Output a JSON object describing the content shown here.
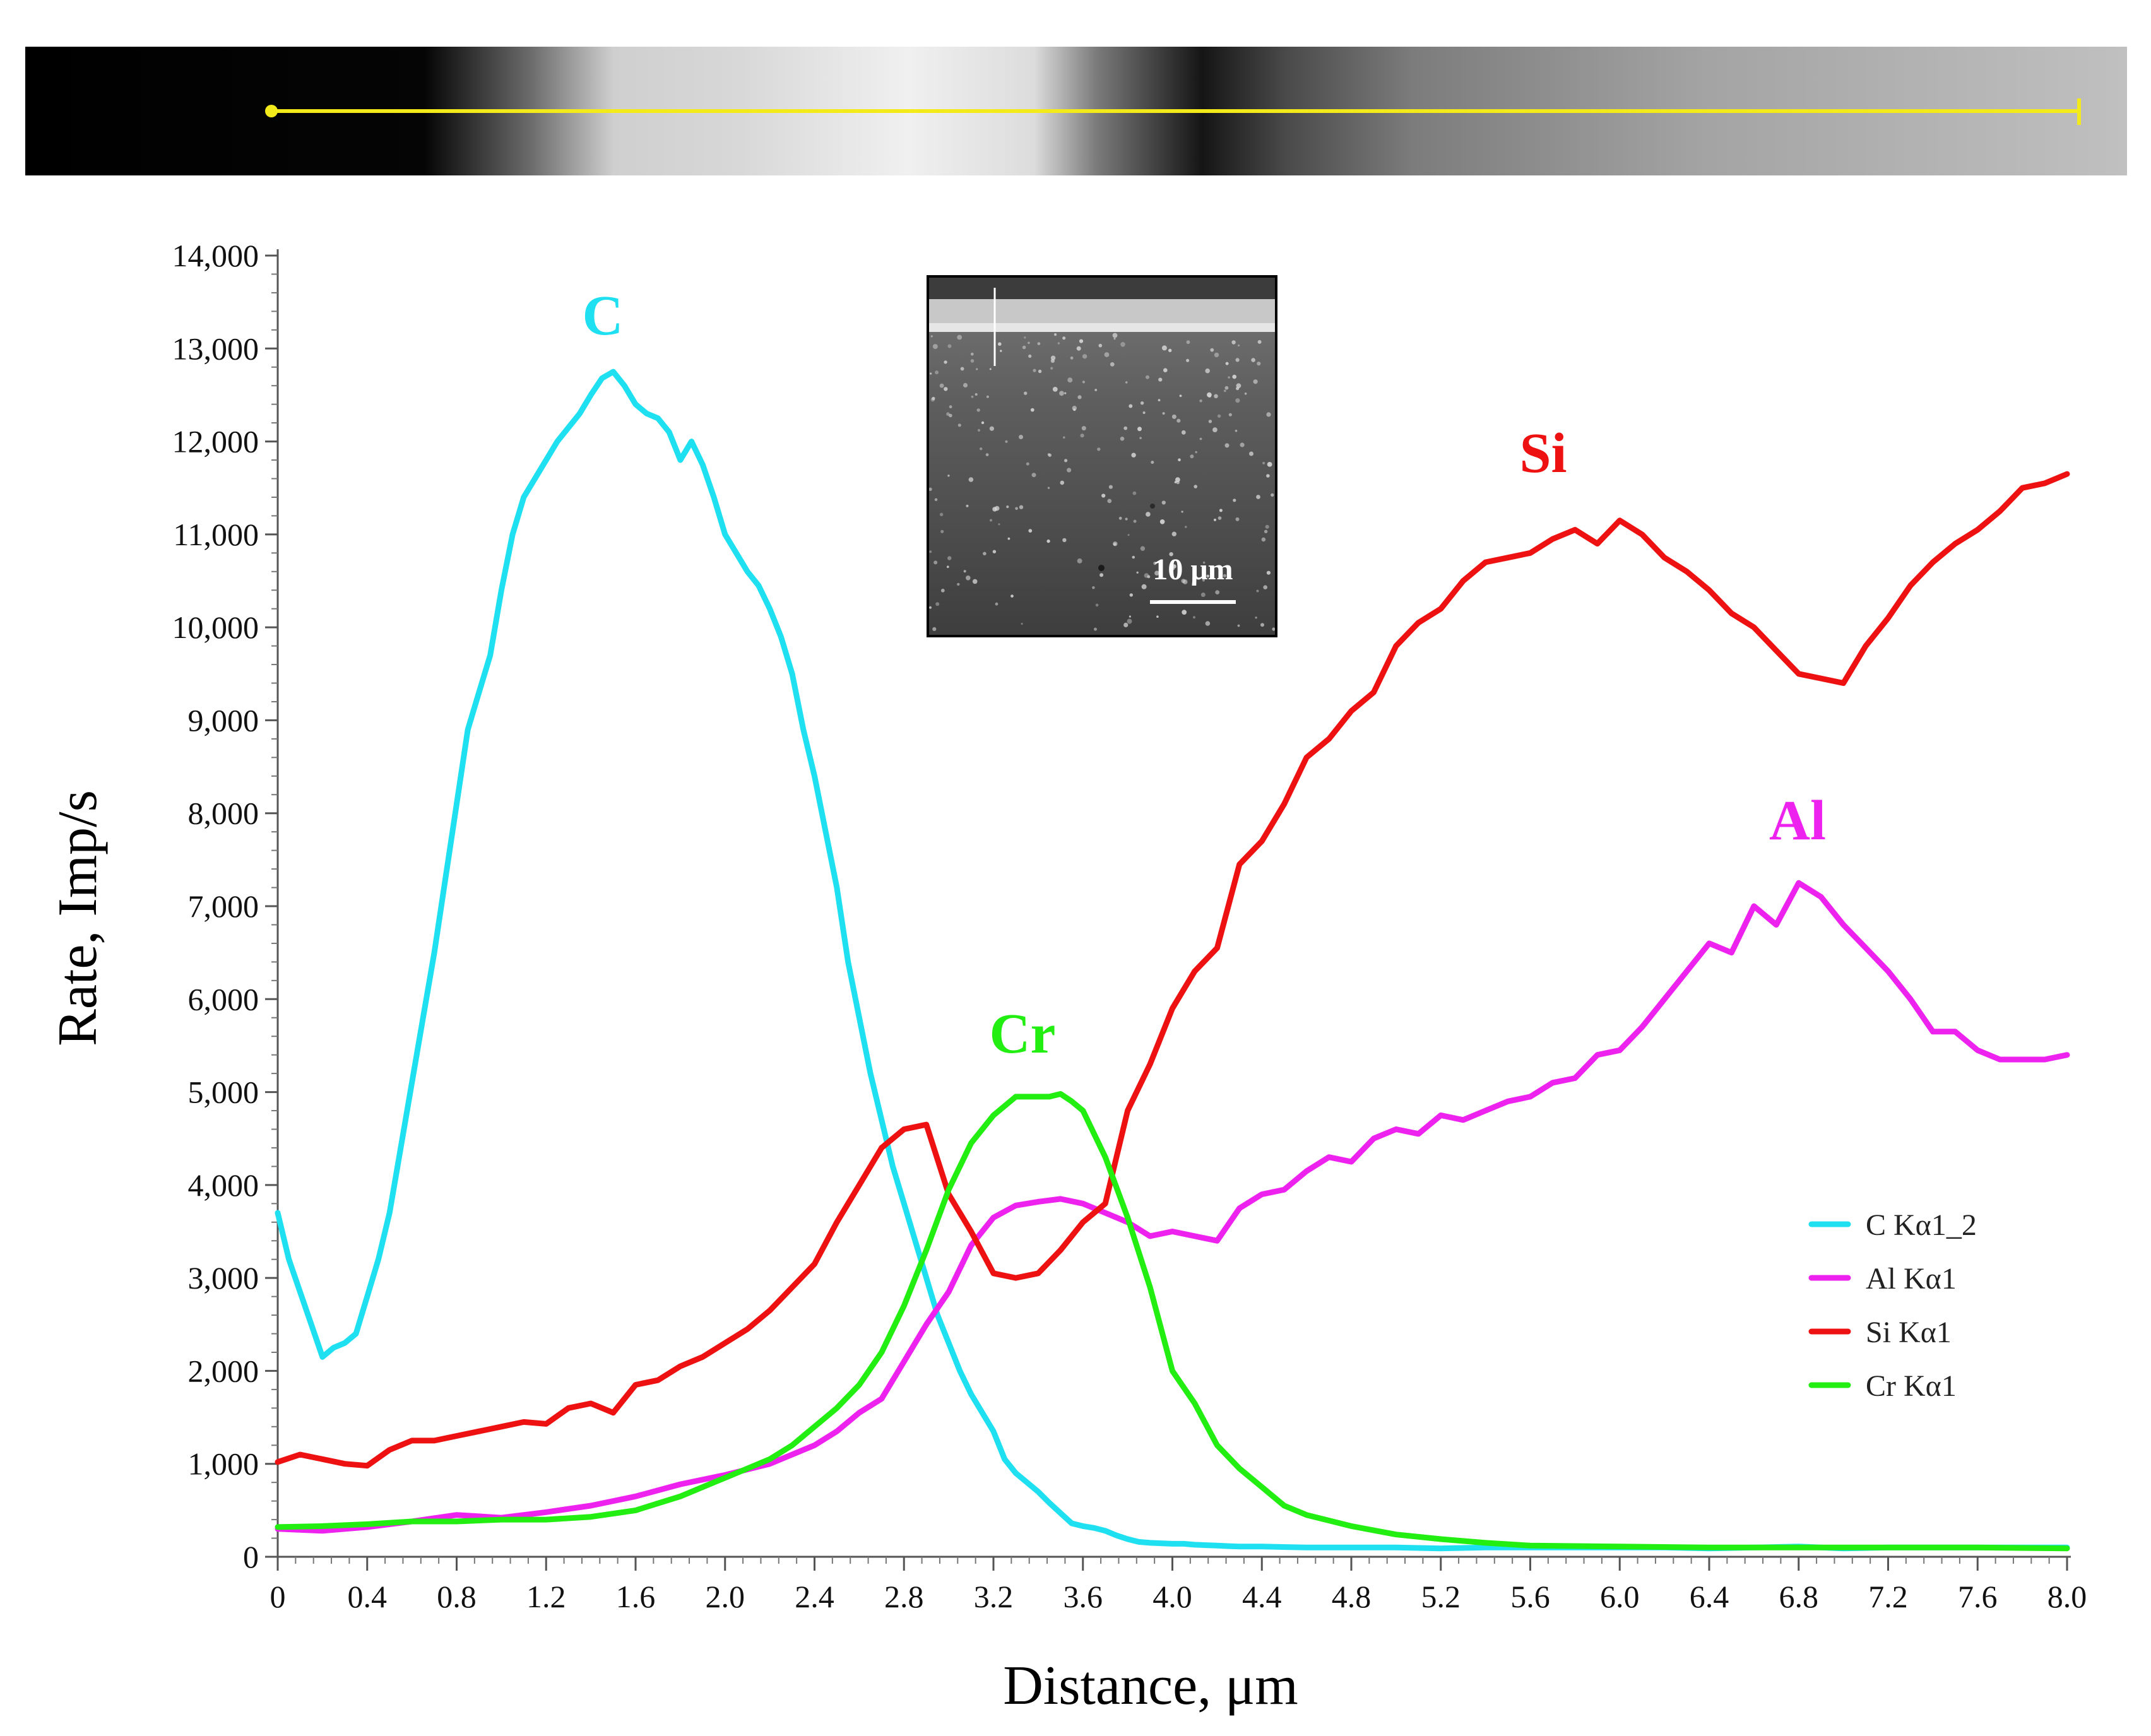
{
  "chart_data": {
    "type": "line",
    "title": "",
    "xlabel": "Distance, μm",
    "ylabel": "Rate, Imp/s",
    "xlim": [
      0,
      8.0
    ],
    "ylim": [
      0,
      14000
    ],
    "x_ticks": [
      0,
      0.4,
      0.8,
      1.2,
      1.6,
      2.0,
      2.4,
      2.8,
      3.2,
      3.6,
      4.0,
      4.4,
      4.8,
      5.2,
      5.6,
      6.0,
      6.4,
      6.8,
      7.2,
      7.6,
      8.0
    ],
    "x_tick_labels": [
      "0",
      "0.4",
      "0.8",
      "1.2",
      "1.6",
      "2.0",
      "2.4",
      "2.8",
      "3.2",
      "3.6",
      "4.0",
      "4.4",
      "4.8",
      "5.2",
      "5.6",
      "6.0",
      "6.4",
      "6.8",
      "7.2",
      "7.6",
      "8.0"
    ],
    "y_ticks": [
      0,
      1000,
      2000,
      3000,
      4000,
      5000,
      6000,
      7000,
      8000,
      9000,
      10000,
      11000,
      12000,
      13000,
      14000
    ],
    "y_tick_labels": [
      "0",
      "1,000",
      "2,000",
      "3,000",
      "4,000",
      "5,000",
      "6,000",
      "7,000",
      "8,000",
      "9,000",
      "10,000",
      "11,000",
      "12,000",
      "13,000",
      "14,000"
    ],
    "grid": false,
    "legend_position": "right",
    "series": [
      {
        "name": "C Kα1_2",
        "label": "C",
        "color": "#1ee0f0",
        "x": [
          0,
          0.05,
          0.1,
          0.15,
          0.2,
          0.25,
          0.3,
          0.35,
          0.4,
          0.45,
          0.5,
          0.55,
          0.6,
          0.65,
          0.7,
          0.75,
          0.8,
          0.85,
          0.9,
          0.95,
          1.0,
          1.05,
          1.1,
          1.15,
          1.2,
          1.25,
          1.3,
          1.35,
          1.4,
          1.45,
          1.5,
          1.55,
          1.6,
          1.65,
          1.7,
          1.75,
          1.8,
          1.85,
          1.9,
          1.95,
          2.0,
          2.05,
          2.1,
          2.15,
          2.2,
          2.25,
          2.3,
          2.35,
          2.4,
          2.45,
          2.5,
          2.55,
          2.6,
          2.65,
          2.7,
          2.75,
          2.8,
          2.85,
          2.9,
          2.95,
          3.0,
          3.05,
          3.1,
          3.15,
          3.2,
          3.25,
          3.3,
          3.35,
          3.4,
          3.45,
          3.5,
          3.55,
          3.6,
          3.65,
          3.7,
          3.75,
          3.8,
          3.85,
          3.9,
          3.95,
          4.0,
          4.05,
          4.1,
          4.15,
          4.2,
          4.25,
          4.3,
          4.4,
          4.6,
          4.8,
          5.0,
          5.2,
          5.4,
          5.6,
          5.8,
          6.0,
          6.2,
          6.4,
          6.6,
          6.8,
          7.0,
          7.2,
          7.4,
          7.6,
          7.8,
          8.0
        ],
        "values": [
          3700,
          3200,
          2850,
          2500,
          2150,
          2250,
          2300,
          2400,
          2800,
          3200,
          3700,
          4400,
          5100,
          5800,
          6500,
          7300,
          8100,
          8900,
          9300,
          9700,
          10400,
          11000,
          11400,
          11600,
          11800,
          12000,
          12150,
          12300,
          12500,
          12680,
          12750,
          12600,
          12400,
          12300,
          12250,
          12100,
          11800,
          12000,
          11750,
          11400,
          11000,
          10800,
          10600,
          10450,
          10200,
          9900,
          9500,
          8900,
          8400,
          7800,
          7200,
          6400,
          5800,
          5200,
          4700,
          4200,
          3800,
          3400,
          3000,
          2600,
          2300,
          2000,
          1750,
          1550,
          1350,
          1050,
          900,
          800,
          700,
          580,
          470,
          360,
          330,
          310,
          280,
          230,
          190,
          160,
          150,
          145,
          140,
          140,
          130,
          125,
          120,
          115,
          110,
          110,
          100,
          100,
          100,
          90,
          100,
          100,
          100,
          100,
          100,
          90,
          100,
          110,
          90,
          100,
          100,
          100,
          100,
          100
        ]
      },
      {
        "name": "Al Kα1",
        "label": "Al",
        "color": "#ee22ee",
        "x": [
          0,
          0.2,
          0.4,
          0.6,
          0.8,
          1.0,
          1.2,
          1.4,
          1.6,
          1.8,
          2.0,
          2.2,
          2.4,
          2.5,
          2.6,
          2.7,
          2.8,
          2.9,
          3.0,
          3.1,
          3.2,
          3.3,
          3.4,
          3.5,
          3.6,
          3.7,
          3.8,
          3.9,
          4.0,
          4.1,
          4.2,
          4.3,
          4.4,
          4.5,
          4.6,
          4.7,
          4.8,
          4.9,
          5.0,
          5.1,
          5.2,
          5.3,
          5.4,
          5.5,
          5.6,
          5.7,
          5.8,
          5.9,
          6.0,
          6.1,
          6.2,
          6.3,
          6.4,
          6.5,
          6.6,
          6.7,
          6.8,
          6.9,
          7.0,
          7.1,
          7.2,
          7.3,
          7.4,
          7.5,
          7.6,
          7.7,
          7.8,
          7.9,
          8.0
        ],
        "values": [
          300,
          280,
          320,
          380,
          450,
          420,
          480,
          550,
          650,
          780,
          880,
          1000,
          1200,
          1350,
          1550,
          1700,
          2100,
          2500,
          2850,
          3350,
          3650,
          3780,
          3820,
          3850,
          3800,
          3700,
          3600,
          3450,
          3500,
          3450,
          3400,
          3750,
          3900,
          3950,
          4150,
          4300,
          4250,
          4500,
          4600,
          4550,
          4750,
          4700,
          4800,
          4900,
          4950,
          5100,
          5150,
          5400,
          5450,
          5700,
          6000,
          6300,
          6600,
          6500,
          7000,
          6800,
          7250,
          7100,
          6800,
          6550,
          6300,
          6000,
          5650,
          5650,
          5450,
          5350,
          5350,
          5350,
          5400
        ]
      },
      {
        "name": "Si Kα1",
        "label": "Si",
        "color": "#ee1111",
        "x": [
          0,
          0.1,
          0.2,
          0.3,
          0.4,
          0.5,
          0.6,
          0.7,
          0.8,
          0.9,
          1.0,
          1.1,
          1.2,
          1.3,
          1.4,
          1.5,
          1.6,
          1.7,
          1.8,
          1.9,
          2.0,
          2.1,
          2.2,
          2.3,
          2.4,
          2.5,
          2.6,
          2.7,
          2.8,
          2.9,
          3.0,
          3.1,
          3.2,
          3.3,
          3.4,
          3.5,
          3.6,
          3.7,
          3.8,
          3.9,
          4.0,
          4.1,
          4.2,
          4.3,
          4.4,
          4.5,
          4.6,
          4.7,
          4.8,
          4.9,
          5.0,
          5.1,
          5.2,
          5.3,
          5.4,
          5.5,
          5.6,
          5.7,
          5.8,
          5.9,
          6.0,
          6.1,
          6.2,
          6.3,
          6.4,
          6.5,
          6.6,
          6.7,
          6.8,
          6.9,
          7.0,
          7.1,
          7.2,
          7.3,
          7.4,
          7.5,
          7.6,
          7.7,
          7.8,
          7.9,
          8.0
        ],
        "values": [
          1020,
          1100,
          1050,
          1000,
          980,
          1150,
          1250,
          1250,
          1300,
          1350,
          1400,
          1450,
          1430,
          1600,
          1650,
          1550,
          1850,
          1900,
          2050,
          2150,
          2300,
          2450,
          2650,
          2900,
          3150,
          3600,
          4000,
          4400,
          4600,
          4650,
          3900,
          3500,
          3050,
          3000,
          3050,
          3300,
          3600,
          3800,
          4800,
          5300,
          5900,
          6300,
          6550,
          7450,
          7700,
          8100,
          8600,
          8800,
          9100,
          9300,
          9800,
          10050,
          10200,
          10500,
          10700,
          10750,
          10800,
          10950,
          11050,
          10900,
          11150,
          11000,
          10750,
          10600,
          10400,
          10150,
          10000,
          9750,
          9500,
          9450,
          9400,
          9800,
          10100,
          10450,
          10700,
          10900,
          11050,
          11250,
          11500,
          11550,
          11650
        ]
      },
      {
        "name": "Cr Kα1",
        "label": "Cr",
        "color": "#22ee11",
        "x": [
          0,
          0.2,
          0.4,
          0.6,
          0.8,
          1.0,
          1.2,
          1.4,
          1.6,
          1.8,
          2.0,
          2.1,
          2.2,
          2.3,
          2.4,
          2.5,
          2.6,
          2.7,
          2.8,
          2.9,
          3.0,
          3.1,
          3.2,
          3.3,
          3.35,
          3.4,
          3.45,
          3.5,
          3.55,
          3.6,
          3.7,
          3.8,
          3.9,
          4.0,
          4.1,
          4.2,
          4.3,
          4.4,
          4.5,
          4.6,
          4.8,
          5.0,
          5.2,
          5.4,
          5.6,
          6.0,
          6.4,
          6.8,
          7.2,
          7.6,
          8.0
        ],
        "values": [
          320,
          330,
          350,
          380,
          380,
          400,
          400,
          430,
          500,
          650,
          850,
          950,
          1050,
          1200,
          1400,
          1600,
          1850,
          2200,
          2700,
          3300,
          3950,
          4450,
          4750,
          4950,
          4950,
          4950,
          4950,
          4980,
          4900,
          4800,
          4300,
          3650,
          2900,
          2000,
          1650,
          1200,
          950,
          750,
          550,
          450,
          330,
          240,
          190,
          150,
          120,
          110,
          100,
          100,
          100,
          100,
          90
        ]
      }
    ],
    "series_labels": [
      "C",
      "Si",
      "Cr",
      "Al"
    ],
    "legend": [
      "C Kα1_2",
      "Al Kα1",
      "Si Kα1",
      "Cr Kα1"
    ]
  },
  "inset": {
    "scale_bar_label": "10 μm"
  }
}
